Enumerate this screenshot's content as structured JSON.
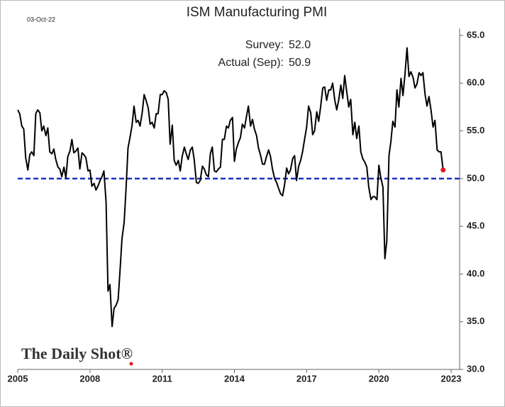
{
  "chart_data": {
    "type": "line",
    "title": "ISM Manufacturing PMI",
    "date_stamp": "03-Oct-22",
    "annotations": [
      {
        "label": "Survey:",
        "value": "52.0"
      },
      {
        "label": "Actual (Sep):",
        "value": "50.9"
      }
    ],
    "watermark": "The Daily Shot®",
    "color": "#000000",
    "highlight_color": "#e31a1c",
    "reference_line": 50,
    "reference_color": "#1f2fbf",
    "xlim": [
      2005,
      2023
    ],
    "xticks": [
      2005,
      2008,
      2011,
      2014,
      2017,
      2020,
      2023
    ],
    "ylim": [
      30,
      65
    ],
    "yticks": [
      {
        "value": 30,
        "label": "30.0"
      },
      {
        "value": 35,
        "label": "35.0"
      },
      {
        "value": 40,
        "label": "40.0"
      },
      {
        "value": 45,
        "label": "45.0"
      },
      {
        "value": 50,
        "label": "50.0"
      },
      {
        "value": 55,
        "label": "55.0"
      },
      {
        "value": 60,
        "label": "60.0"
      },
      {
        "value": 65,
        "label": "65.0"
      }
    ],
    "x": [
      2005.0,
      2005.08,
      2005.17,
      2005.25,
      2005.33,
      2005.42,
      2005.5,
      2005.58,
      2005.67,
      2005.75,
      2005.83,
      2005.92,
      2006.0,
      2006.08,
      2006.17,
      2006.25,
      2006.33,
      2006.42,
      2006.5,
      2006.58,
      2006.67,
      2006.75,
      2006.83,
      2006.92,
      2007.0,
      2007.08,
      2007.17,
      2007.25,
      2007.33,
      2007.42,
      2007.5,
      2007.58,
      2007.67,
      2007.75,
      2007.83,
      2007.92,
      2008.0,
      2008.08,
      2008.17,
      2008.25,
      2008.33,
      2008.42,
      2008.5,
      2008.58,
      2008.67,
      2008.75,
      2008.83,
      2008.92,
      2009.0,
      2009.08,
      2009.17,
      2009.25,
      2009.33,
      2009.42,
      2009.5,
      2009.58,
      2009.67,
      2009.75,
      2009.83,
      2009.92,
      2010.0,
      2010.08,
      2010.17,
      2010.25,
      2010.33,
      2010.42,
      2010.5,
      2010.58,
      2010.67,
      2010.75,
      2010.83,
      2010.92,
      2011.0,
      2011.08,
      2011.17,
      2011.25,
      2011.33,
      2011.42,
      2011.5,
      2011.58,
      2011.67,
      2011.75,
      2011.83,
      2011.92,
      2012.0,
      2012.08,
      2012.17,
      2012.25,
      2012.33,
      2012.42,
      2012.5,
      2012.58,
      2012.67,
      2012.75,
      2012.83,
      2012.92,
      2013.0,
      2013.08,
      2013.17,
      2013.25,
      2013.33,
      2013.42,
      2013.5,
      2013.58,
      2013.67,
      2013.75,
      2013.83,
      2013.92,
      2014.0,
      2014.08,
      2014.17,
      2014.25,
      2014.33,
      2014.42,
      2014.5,
      2014.58,
      2014.67,
      2014.75,
      2014.83,
      2014.92,
      2015.0,
      2015.08,
      2015.17,
      2015.25,
      2015.33,
      2015.42,
      2015.5,
      2015.58,
      2015.67,
      2015.75,
      2015.83,
      2015.92,
      2016.0,
      2016.08,
      2016.17,
      2016.25,
      2016.33,
      2016.42,
      2016.5,
      2016.58,
      2016.67,
      2016.75,
      2016.83,
      2016.92,
      2017.0,
      2017.08,
      2017.17,
      2017.25,
      2017.33,
      2017.42,
      2017.5,
      2017.58,
      2017.67,
      2017.75,
      2017.83,
      2017.92,
      2018.0,
      2018.08,
      2018.17,
      2018.25,
      2018.33,
      2018.42,
      2018.5,
      2018.58,
      2018.67,
      2018.75,
      2018.83,
      2018.92,
      2019.0,
      2019.08,
      2019.17,
      2019.25,
      2019.33,
      2019.42,
      2019.5,
      2019.58,
      2019.67,
      2019.75,
      2019.83,
      2019.92,
      2020.0,
      2020.08,
      2020.17,
      2020.25,
      2020.33,
      2020.42,
      2020.5,
      2020.58,
      2020.67,
      2020.75,
      2020.83,
      2020.92,
      2021.0,
      2021.08,
      2021.17,
      2021.25,
      2021.33,
      2021.42,
      2021.5,
      2021.58,
      2021.67,
      2021.75,
      2021.83,
      2021.92,
      2022.0,
      2022.08,
      2022.17,
      2022.25,
      2022.33,
      2022.42,
      2022.5,
      2022.58,
      2022.67
    ],
    "values": [
      57.2,
      56.8,
      55.5,
      55.2,
      52.2,
      50.9,
      52.5,
      52.8,
      52.4,
      56.8,
      57.2,
      56.9,
      55.0,
      55.5,
      54.5,
      55.3,
      52.8,
      52.6,
      53.1,
      52.0,
      51.2,
      51.0,
      50.2,
      51.2,
      50.1,
      52.3,
      52.9,
      54.1,
      52.7,
      52.9,
      53.2,
      51.0,
      52.7,
      52.5,
      52.2,
      50.8,
      50.9,
      49.2,
      49.5,
      48.8,
      49.2,
      49.8,
      50.2,
      50.8,
      47.5,
      38.2,
      38.9,
      34.5,
      36.4,
      36.7,
      37.3,
      40.4,
      43.7,
      45.4,
      49.0,
      53.2,
      54.4,
      55.6,
      57.6,
      55.9,
      56.1,
      55.5,
      56.9,
      58.8,
      58.2,
      57.4,
      55.7,
      55.9,
      55.3,
      56.8,
      56.8,
      58.8,
      58.8,
      59.2,
      59.0,
      58.3,
      53.6,
      55.6,
      51.9,
      51.4,
      51.9,
      50.8,
      52.3,
      53.3,
      52.6,
      52.0,
      53.0,
      53.3,
      52.0,
      49.6,
      49.5,
      49.8,
      51.3,
      51.0,
      50.4,
      50.2,
      52.6,
      53.3,
      50.8,
      50.7,
      51.0,
      51.2,
      54.1,
      54.1,
      55.5,
      55.3,
      56.1,
      56.4,
      51.8,
      53.1,
      53.8,
      54.3,
      55.7,
      55.3,
      56.5,
      57.6,
      55.5,
      56.2,
      55.2,
      54.5,
      53.2,
      52.5,
      51.5,
      51.5,
      52.3,
      53.0,
      52.3,
      51.0,
      50.0,
      49.6,
      49.0,
      48.4,
      48.2,
      49.3,
      51.1,
      50.5,
      50.9,
      52.1,
      52.4,
      49.8,
      51.3,
      51.9,
      52.8,
      54.2,
      55.4,
      57.6,
      56.9,
      54.6,
      55.0,
      57.0,
      56.0,
      57.5,
      59.5,
      59.6,
      58.2,
      59.3,
      59.3,
      60.0,
      58.2,
      57.2,
      58.2,
      59.8,
      58.4,
      60.8,
      59.0,
      57.5,
      58.3,
      54.6,
      55.9,
      54.2,
      55.5,
      52.8,
      52.1,
      51.7,
      51.2,
      49.1,
      47.8,
      48.1,
      48.1,
      47.8,
      51.4,
      50.1,
      49.1,
      41.6,
      43.5,
      52.4,
      53.9,
      56.0,
      55.4,
      59.3,
      57.5,
      60.5,
      58.7,
      60.8,
      63.7,
      60.7,
      61.2,
      60.6,
      59.5,
      59.9,
      61.1,
      60.8,
      61.1,
      58.8,
      57.6,
      58.6,
      57.1,
      55.4,
      56.1,
      53.0,
      52.8,
      52.8,
      50.9
    ]
  }
}
